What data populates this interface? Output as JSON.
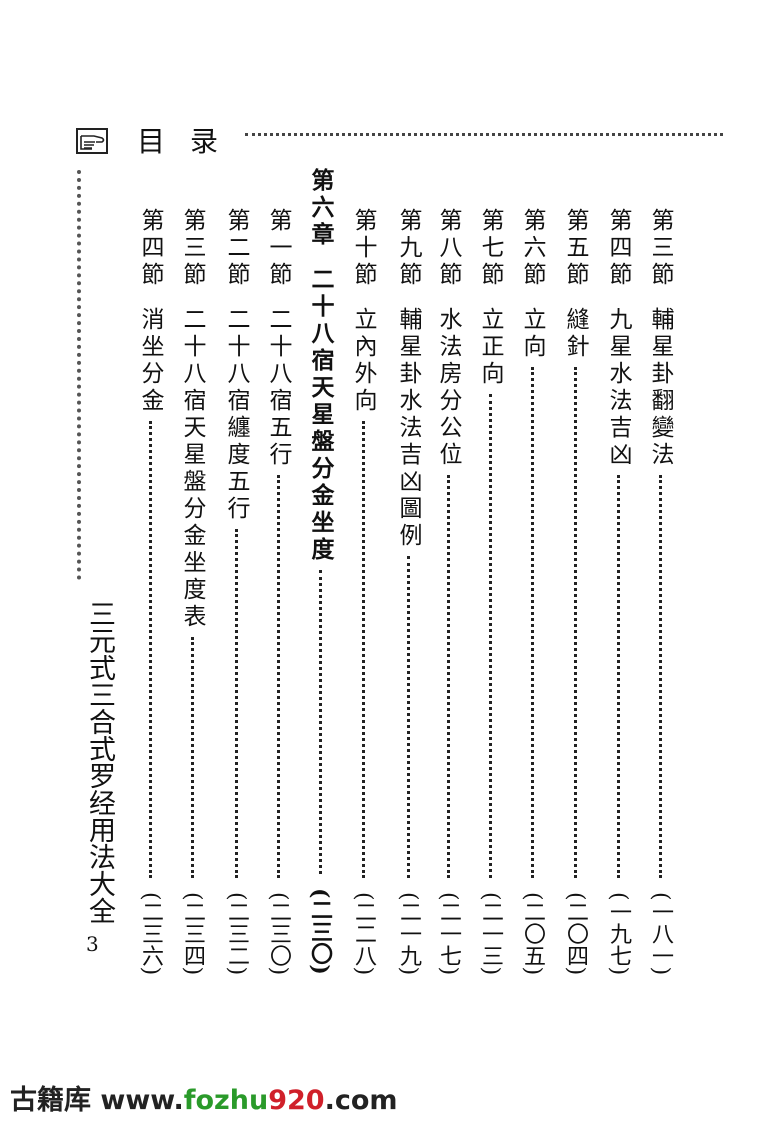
{
  "header": {
    "icon": "pointing-hand-icon",
    "title_chars": [
      "目",
      "录"
    ]
  },
  "book_title": "三元式三合式罗经用法大全",
  "page_number": "3",
  "entries": [
    {
      "label": "第三節",
      "title": "輔星卦翻變法",
      "page": "(一八一)"
    },
    {
      "label": "第四節",
      "title": "九星水法吉凶",
      "page": "(一九七)"
    },
    {
      "label": "第五節",
      "title": "縫針",
      "page": "(二〇四)"
    },
    {
      "label": "第六節",
      "title": "立向",
      "page": "(二〇五)"
    },
    {
      "label": "第七節",
      "title": "立正向",
      "page": "(二一三)"
    },
    {
      "label": "第八節",
      "title": "水法房分公位",
      "page": "(二一七)"
    },
    {
      "label": "第九節",
      "title": "輔星卦水法吉凶圖例",
      "page": "(二一九)"
    },
    {
      "label": "第十節",
      "title": "立內外向",
      "page": "(二二八)"
    },
    {
      "label": "第六章",
      "title": "二十八宿天星盤分金坐度",
      "page": "(二三〇)",
      "chapter": true
    },
    {
      "label": "第一節",
      "title": "二十八宿五行",
      "page": "(二三〇)"
    },
    {
      "label": "第二節",
      "title": "二十八宿纏度五行",
      "page": "(二三二)"
    },
    {
      "label": "第三節",
      "title": "二十八宿天星盤分金坐度表",
      "page": "(二三四)"
    },
    {
      "label": "第四節",
      "title": "消坐分金",
      "page": "(二三六)"
    }
  ],
  "watermark": {
    "prefix": "古籍库 www.",
    "green": "fozhu",
    "red": "920",
    "suffix": ".com",
    "green_color": "#2a9a2a",
    "red_color": "#d0202a"
  }
}
